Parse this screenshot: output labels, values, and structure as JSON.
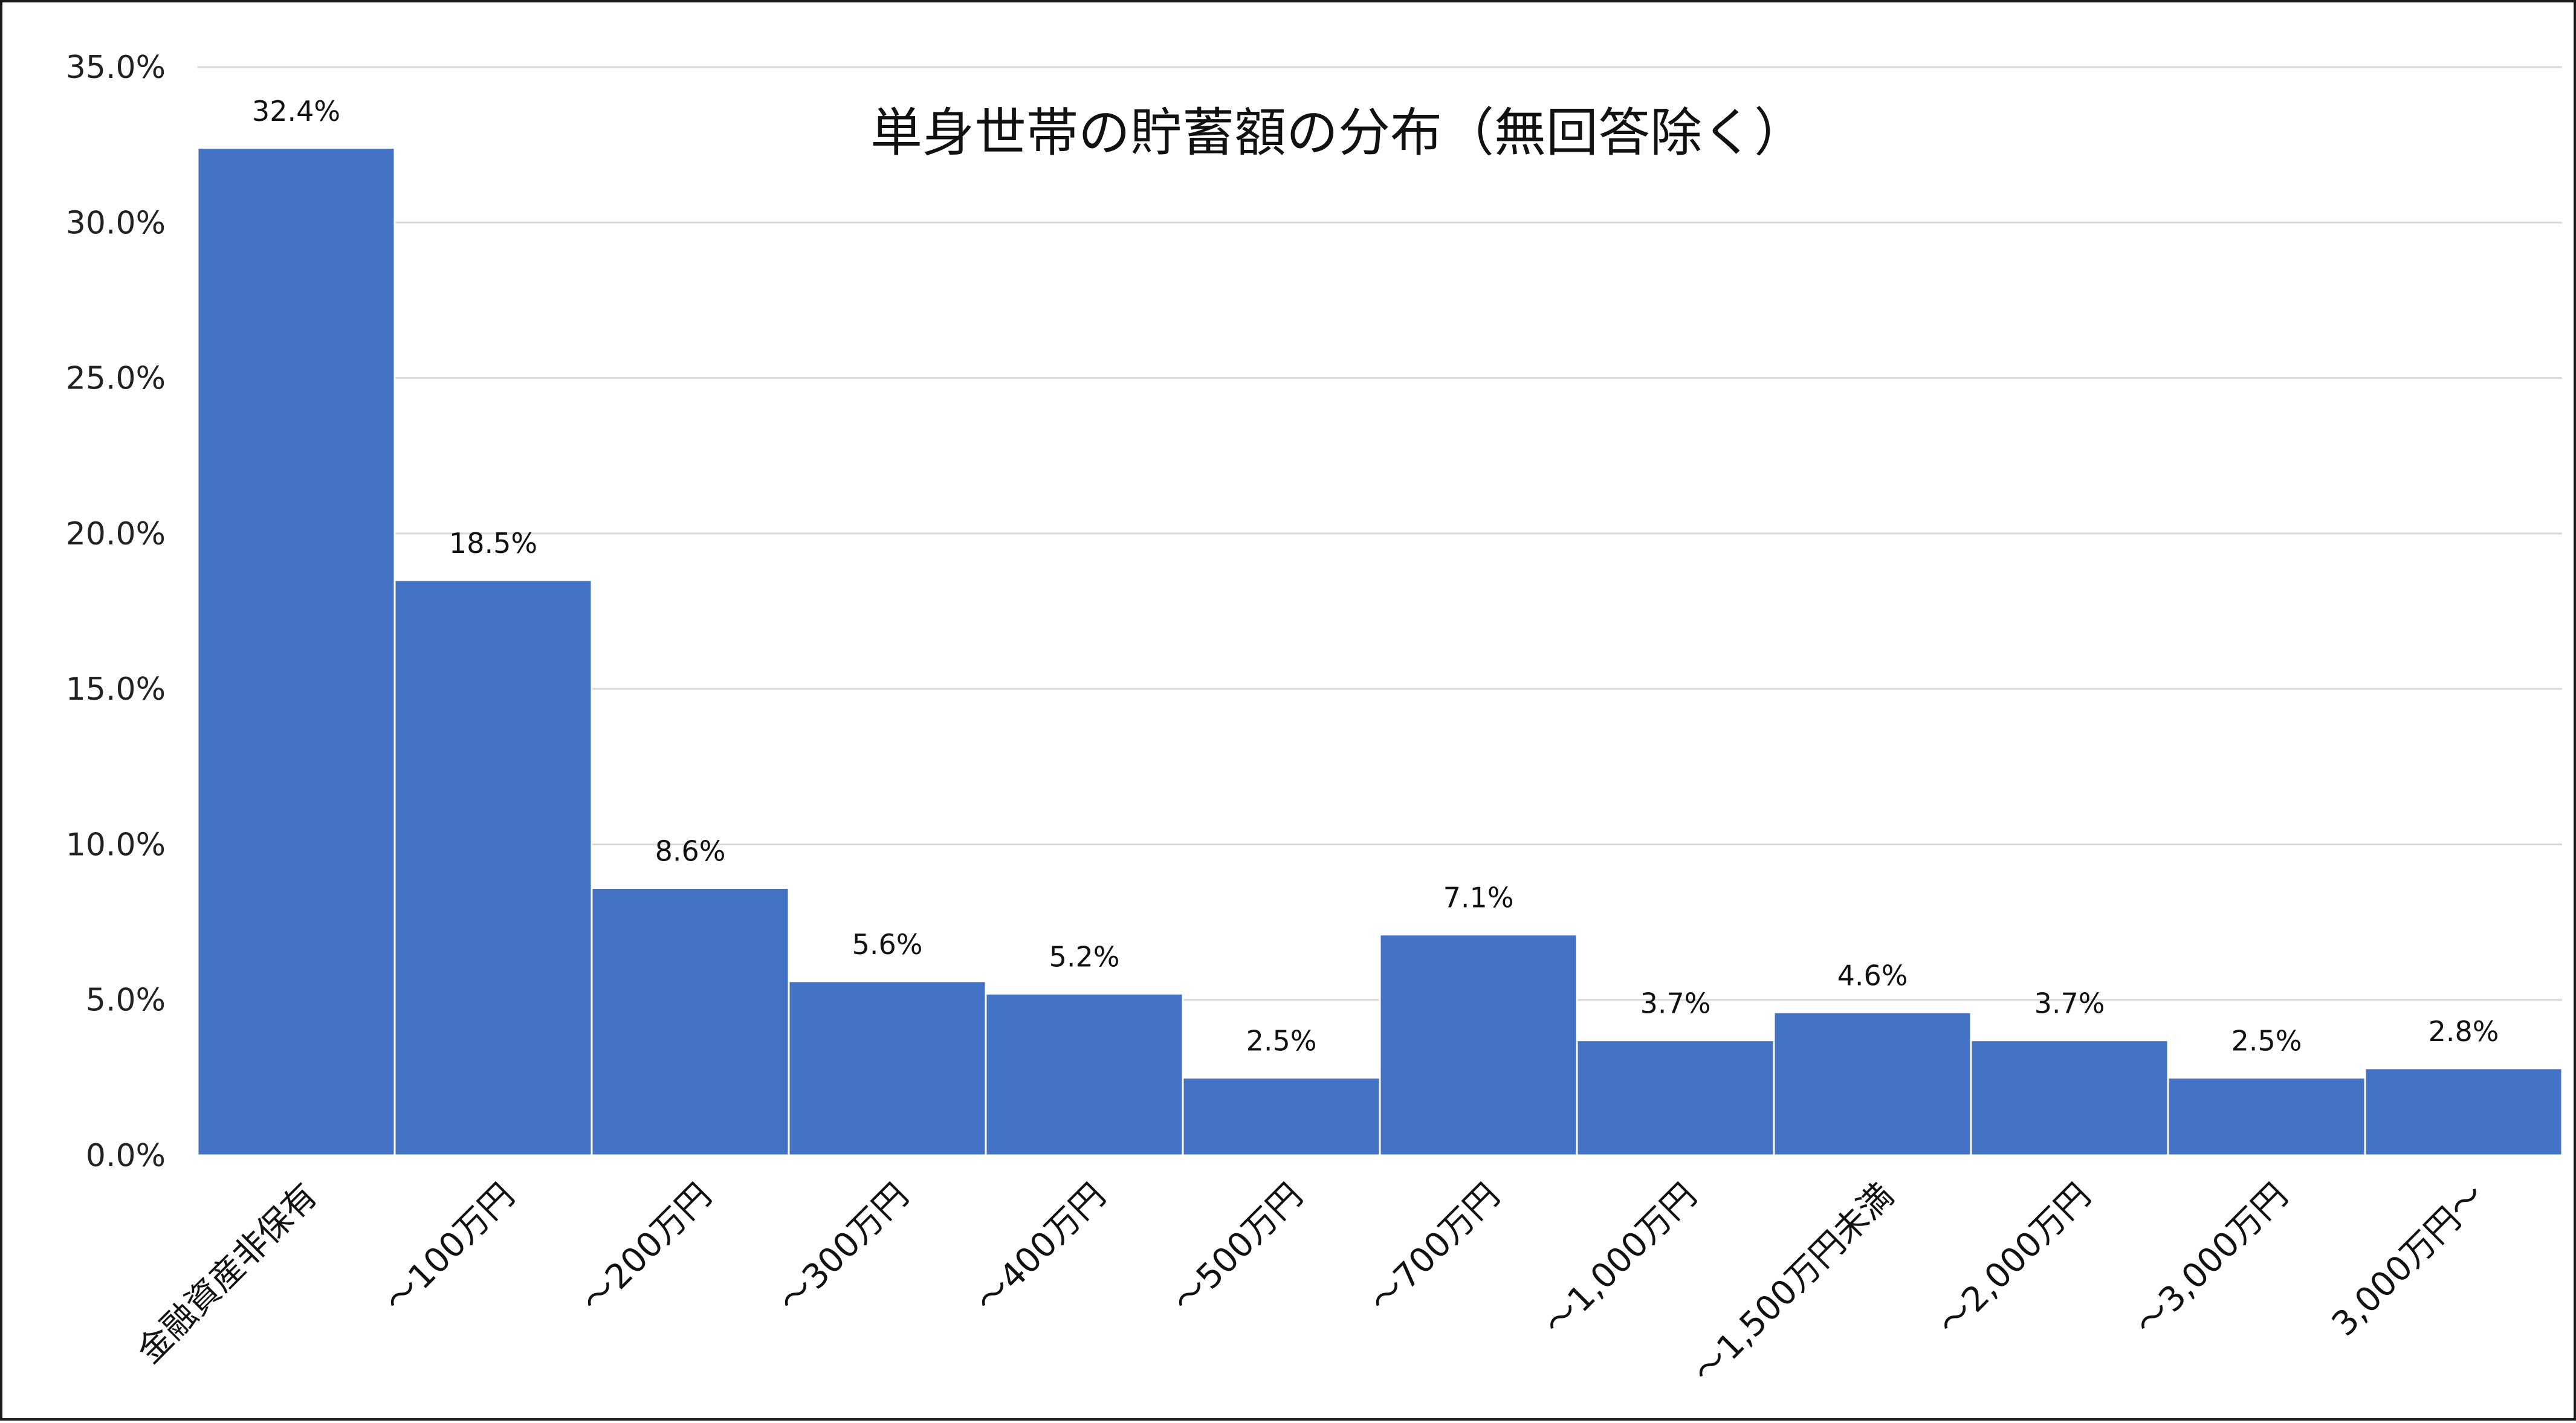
{
  "chart_data": {
    "type": "bar",
    "title": "単身世帯の貯蓄額の分布（無回答除く）",
    "xlabel": "",
    "ylabel": "",
    "categories": [
      "金融資産非保有",
      "～100万円",
      "～200万円",
      "～300万円",
      "～400万円",
      "～500万円",
      "～700万円",
      "～1,000万円",
      "～1,500万円未満",
      "～2,000万円",
      "～3,000万円",
      "3,000万円～"
    ],
    "values": [
      32.4,
      18.5,
      8.6,
      5.6,
      5.2,
      2.5,
      7.1,
      3.7,
      4.6,
      3.7,
      2.5,
      2.8
    ],
    "data_labels": [
      "32.4%",
      "18.5%",
      "8.6%",
      "5.6%",
      "5.2%",
      "2.5%",
      "7.1%",
      "3.7%",
      "4.6%",
      "3.7%",
      "2.5%",
      "2.8%"
    ],
    "ylim": [
      0,
      35
    ],
    "y_ticks": [
      0,
      5,
      10,
      15,
      20,
      25,
      30,
      35
    ],
    "y_tick_labels": [
      "0.0%",
      "5.0%",
      "10.0%",
      "15.0%",
      "20.0%",
      "25.0%",
      "30.0%",
      "35.0%"
    ],
    "grid": true,
    "legend": "none",
    "colors": {
      "bar": "#4472C4",
      "bar_border": "#ffffff",
      "gridline": "#d9d9d9",
      "text": "#111111"
    }
  }
}
